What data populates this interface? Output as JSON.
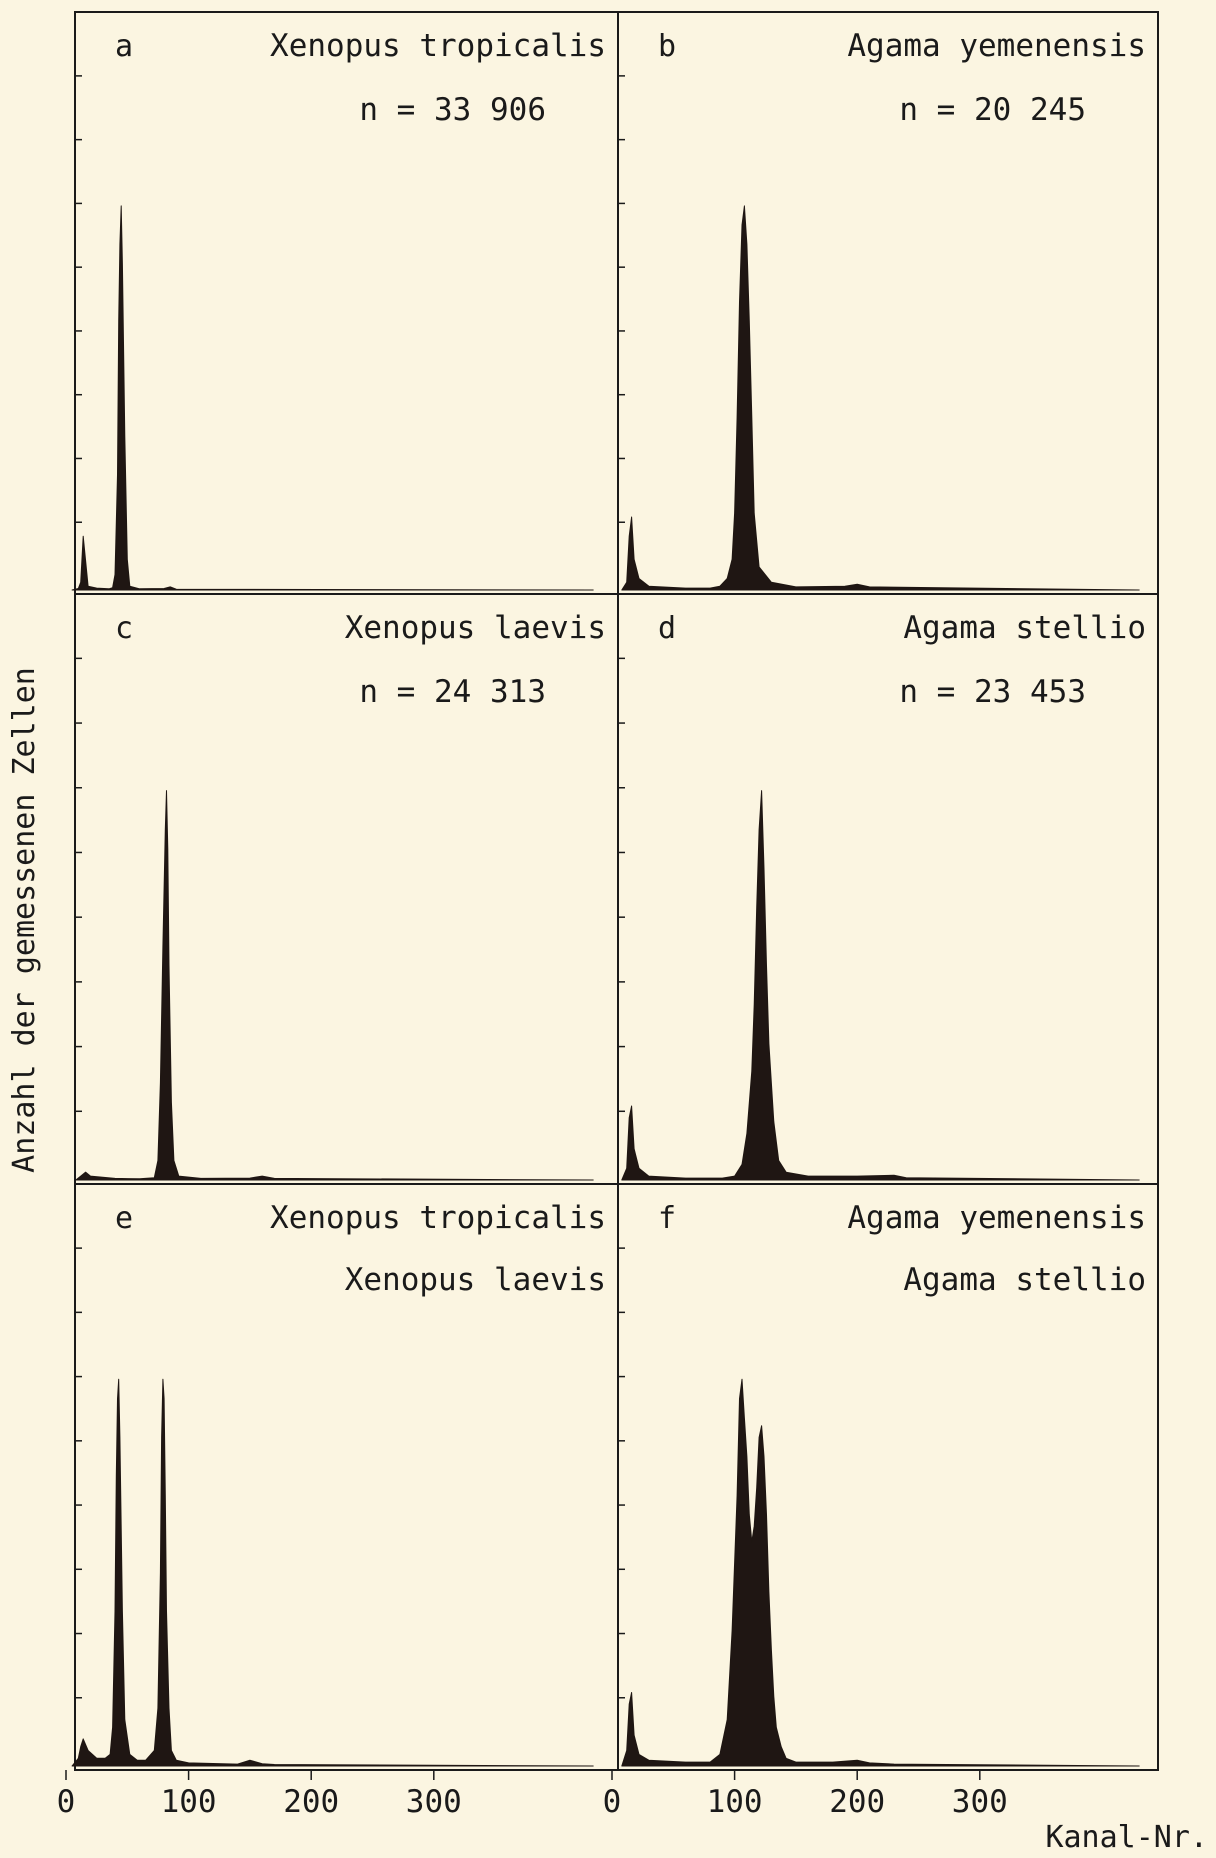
{
  "y_axis_label": "Anzahl der gemessenen Zellen",
  "x_axis_label": "Kanal-Nr.",
  "colors": {
    "background": "#fbf5e1",
    "ink": "#1a1a1a",
    "fill": "#1f1613"
  },
  "chart_data": [
    {
      "type": "area",
      "panel": "a",
      "labels": [
        "Xenopus tropicalis"
      ],
      "n_text": "n = 33 906",
      "xlim": [
        0,
        430
      ],
      "x_tick_labels": [
        "0",
        "100",
        "200",
        "300"
      ],
      "x_ticks": [
        0,
        100,
        200,
        300
      ],
      "x_tick_labels_visible": false,
      "y_ticks": 8,
      "x": [
        5,
        10,
        12,
        14,
        18,
        25,
        35,
        38,
        40,
        42,
        43,
        44,
        45,
        46,
        48,
        50,
        52,
        60,
        80,
        85,
        90,
        430
      ],
      "y": [
        0,
        0.4,
        2,
        14,
        1,
        0.5,
        0.3,
        0.6,
        4,
        30,
        70,
        90,
        100,
        85,
        40,
        8,
        1,
        0.3,
        0.4,
        0.8,
        0.2,
        0
      ]
    },
    {
      "type": "area",
      "panel": "b",
      "labels": [
        "Agama yemenensis"
      ],
      "n_text": "n = 20 245",
      "xlim": [
        0,
        430
      ],
      "x_tick_labels": [
        "0",
        "100",
        "200",
        "300"
      ],
      "x_ticks": [
        0,
        100,
        200,
        300
      ],
      "x_tick_labels_visible": false,
      "y_ticks": 8,
      "x": [
        8,
        12,
        14,
        16,
        18,
        22,
        30,
        60,
        80,
        88,
        94,
        98,
        100,
        102,
        104,
        106,
        108,
        110,
        112,
        114,
        116,
        120,
        130,
        150,
        190,
        200,
        210,
        430
      ],
      "y": [
        0,
        2,
        14,
        19,
        8,
        3,
        1,
        0.5,
        0.5,
        1,
        3,
        8,
        20,
        45,
        75,
        95,
        100,
        90,
        70,
        45,
        20,
        6,
        2,
        0.8,
        1,
        1.5,
        0.8,
        0
      ]
    },
    {
      "type": "area",
      "panel": "c",
      "labels": [
        "Xenopus laevis"
      ],
      "n_text": "n = 24 313",
      "xlim": [
        0,
        430
      ],
      "x_tick_labels": [
        "0",
        "100",
        "200",
        "300"
      ],
      "x_ticks": [
        0,
        100,
        200,
        300
      ],
      "x_tick_labels_visible": false,
      "y_ticks": 8,
      "x": [
        8,
        12,
        16,
        20,
        40,
        60,
        72,
        75,
        77,
        79,
        81,
        82,
        83,
        84,
        86,
        88,
        92,
        110,
        150,
        160,
        170,
        430
      ],
      "y": [
        0,
        1,
        2,
        1,
        0.4,
        0.3,
        0.6,
        5,
        25,
        60,
        90,
        100,
        85,
        55,
        20,
        5,
        1,
        0.4,
        0.5,
        1,
        0.4,
        0
      ]
    },
    {
      "type": "area",
      "panel": "d",
      "labels": [
        "Agama stellio"
      ],
      "n_text": "n = 23 453",
      "xlim": [
        0,
        430
      ],
      "x_tick_labels": [
        "0",
        "100",
        "200",
        "300"
      ],
      "x_ticks": [
        0,
        100,
        200,
        300
      ],
      "x_tick_labels_visible": false,
      "y_ticks": 8,
      "x": [
        8,
        12,
        14,
        16,
        18,
        22,
        30,
        60,
        90,
        100,
        106,
        110,
        114,
        116,
        118,
        120,
        122,
        124,
        126,
        128,
        132,
        136,
        142,
        160,
        200,
        230,
        240,
        430
      ],
      "y": [
        0,
        3,
        16,
        19,
        8,
        3,
        1,
        0.5,
        0.5,
        1,
        4,
        12,
        28,
        45,
        70,
        90,
        100,
        80,
        55,
        35,
        15,
        5,
        2,
        1,
        1,
        1.2,
        0.6,
        0
      ]
    },
    {
      "type": "area",
      "panel": "e",
      "labels": [
        "Xenopus tropicalis",
        "Xenopus laevis"
      ],
      "n_text": "",
      "xlim": [
        0,
        430
      ],
      "x_tick_labels": [
        "0",
        "100",
        "200",
        "300"
      ],
      "x_ticks": [
        0,
        100,
        200,
        300
      ],
      "x_tick_labels_visible": true,
      "y_ticks": 8,
      "x": [
        5,
        10,
        12,
        14,
        18,
        25,
        32,
        36,
        38,
        40,
        41,
        42,
        43,
        44,
        46,
        48,
        52,
        58,
        65,
        72,
        75,
        77,
        78,
        79,
        80,
        81,
        82,
        84,
        86,
        90,
        100,
        140,
        150,
        160,
        170,
        430
      ],
      "y": [
        0,
        2,
        5,
        7,
        4,
        2,
        2,
        3,
        10,
        40,
        75,
        95,
        100,
        85,
        40,
        12,
        3,
        1.5,
        1.5,
        4,
        15,
        50,
        85,
        100,
        95,
        70,
        40,
        15,
        4,
        1.5,
        0.8,
        0.5,
        1.5,
        0.6,
        0.4,
        0
      ]
    },
    {
      "type": "area",
      "panel": "f",
      "labels": [
        "Agama yemenensis",
        "Agama stellio"
      ],
      "n_text": "",
      "xlim": [
        0,
        430
      ],
      "x_tick_labels": [
        "0",
        "100",
        "200",
        "300"
      ],
      "x_ticks": [
        0,
        100,
        200,
        300
      ],
      "x_tick_labels_visible": true,
      "y_ticks": 8,
      "x": [
        8,
        12,
        14,
        16,
        18,
        22,
        30,
        60,
        80,
        88,
        94,
        98,
        102,
        104,
        106,
        108,
        110,
        112,
        114,
        116,
        118,
        120,
        122,
        124,
        126,
        128,
        130,
        132,
        134,
        138,
        142,
        150,
        180,
        200,
        210,
        230,
        430
      ],
      "y": [
        0,
        4,
        16,
        19,
        8,
        3,
        1.5,
        1,
        1,
        3,
        12,
        35,
        70,
        95,
        100,
        90,
        80,
        65,
        58,
        62,
        72,
        85,
        88,
        80,
        65,
        45,
        30,
        18,
        10,
        5,
        2,
        1,
        1,
        1.5,
        0.8,
        0.5,
        0
      ]
    }
  ]
}
